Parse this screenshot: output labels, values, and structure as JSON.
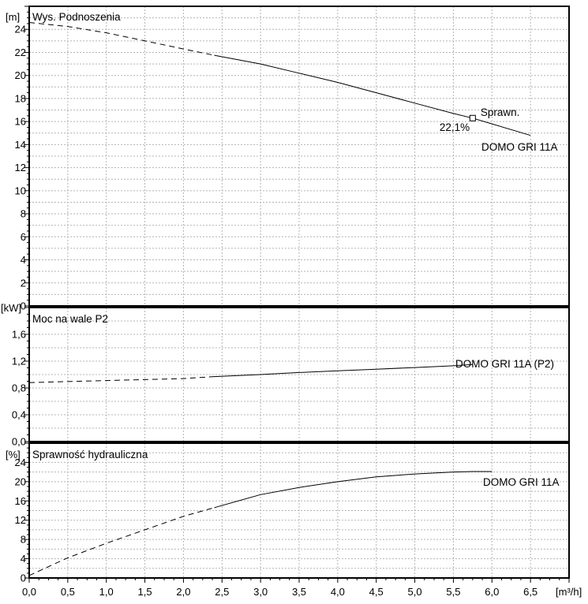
{
  "chart_data": [
    {
      "type": "line",
      "title": "Wys. Podnoszenia",
      "ylabel": "[m]",
      "xlim": [
        0,
        7
      ],
      "ylim": [
        0,
        26
      ],
      "y_ticks": [
        0,
        2,
        4,
        6,
        8,
        10,
        12,
        14,
        16,
        18,
        20,
        22,
        24
      ],
      "y_tick_labels": [
        "0",
        "2",
        "4",
        "6",
        "8",
        "10",
        "12",
        "14",
        "16",
        "18",
        "20",
        "22",
        "24"
      ],
      "grid": true,
      "series": [
        {
          "name": "DOMO GRI 11A",
          "dashed_until_x": 2.4,
          "x": [
            0,
            0.5,
            1.0,
            1.5,
            2.0,
            2.4,
            3.0,
            3.5,
            4.0,
            4.5,
            5.0,
            5.5,
            5.75,
            6.0,
            6.5
          ],
          "y": [
            24.6,
            24.25,
            23.7,
            23.0,
            22.3,
            21.75,
            21.0,
            20.2,
            19.4,
            18.5,
            17.6,
            16.7,
            16.3,
            15.8,
            14.8
          ]
        }
      ],
      "annotations": [
        {
          "text": "Sprawn.",
          "x": 5.75,
          "y": 16.3
        },
        {
          "text": "22,1%",
          "x": 5.75,
          "y": 16.3
        }
      ]
    },
    {
      "type": "line",
      "title": "Moc na wale P2",
      "ylabel": "[kW]",
      "xlim": [
        0,
        7
      ],
      "ylim": [
        0,
        2.0
      ],
      "y_ticks": [
        0,
        0.4,
        0.8,
        1.2,
        1.6
      ],
      "y_tick_labels": [
        "0,0",
        "0,4",
        "0,8",
        "1,2",
        "1,6"
      ],
      "grid": true,
      "series": [
        {
          "name": "DOMO GRI 11A (P2)",
          "dashed_until_x": 2.4,
          "x": [
            0,
            0.5,
            1.0,
            1.5,
            2.0,
            2.4,
            3.0,
            3.5,
            4.0,
            4.5,
            5.0,
            5.5,
            5.75
          ],
          "y": [
            0.88,
            0.895,
            0.91,
            0.925,
            0.94,
            0.97,
            1.0,
            1.03,
            1.055,
            1.08,
            1.105,
            1.13,
            1.15
          ]
        }
      ]
    },
    {
      "type": "line",
      "title": "Sprawność hydrauliczna",
      "ylabel": "[%]",
      "xlabel": "[m³/h]",
      "xlim": [
        0,
        7
      ],
      "ylim": [
        0,
        28
      ],
      "x_ticks": [
        0,
        0.5,
        1.0,
        1.5,
        2.0,
        2.5,
        3.0,
        3.5,
        4.0,
        4.5,
        5.0,
        5.5,
        6.0,
        6.5
      ],
      "x_tick_labels": [
        "0,0",
        "0,5",
        "1,0",
        "1,5",
        "2,0",
        "2,5",
        "3,0",
        "3,5",
        "4,0",
        "4,5",
        "5,0",
        "5,5",
        "6,0",
        "6,5"
      ],
      "y_ticks": [
        0,
        4,
        8,
        12,
        16,
        20,
        24
      ],
      "y_tick_labels": [
        "0",
        "4",
        "8",
        "12",
        "16",
        "20",
        "24"
      ],
      "grid": true,
      "series": [
        {
          "name": "DOMO GRI 11A",
          "dashed_until_x": 2.4,
          "x": [
            0,
            0.5,
            1.0,
            1.5,
            2.0,
            2.4,
            3.0,
            3.5,
            4.0,
            4.5,
            5.0,
            5.5,
            5.75,
            6.0
          ],
          "y": [
            0.5,
            4.2,
            7.2,
            10.0,
            12.8,
            14.6,
            17.3,
            18.8,
            20.0,
            21.0,
            21.6,
            22.0,
            22.1,
            22.1
          ]
        }
      ]
    }
  ]
}
